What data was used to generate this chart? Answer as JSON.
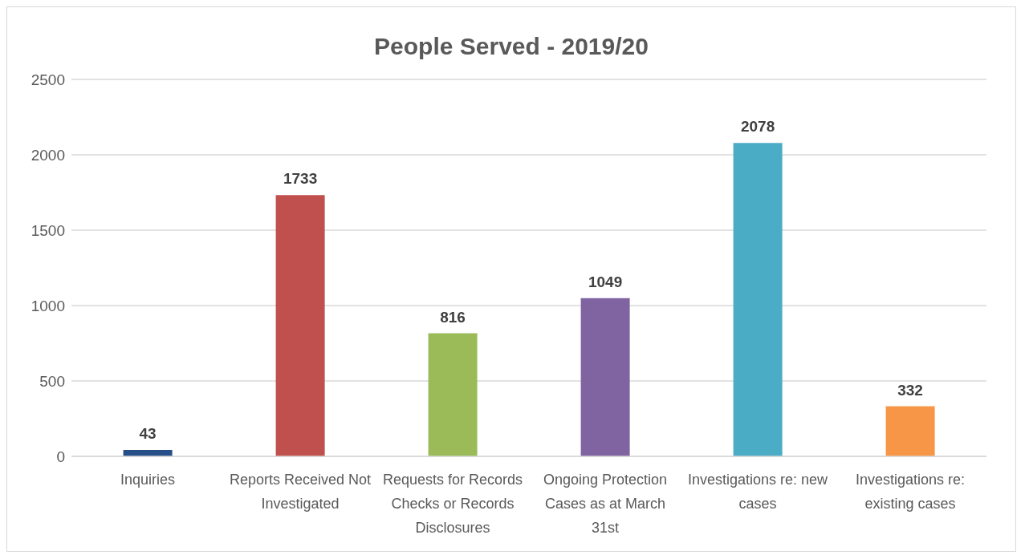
{
  "chart_data": {
    "type": "bar",
    "title": "People Served - 2019/20",
    "categories": [
      "Inquiries",
      "Reports Received Not Investigated",
      "Requests for Records Checks or Records Disclosures",
      "Ongoing Protection Cases as at March 31st",
      "Investigations re: new cases",
      "Investigations re: existing cases"
    ],
    "values": [
      43,
      1733,
      816,
      1049,
      2078,
      332
    ],
    "colors": [
      "#264f8a",
      "#c0504d",
      "#9bbb59",
      "#8064a2",
      "#4bacc6",
      "#f79646"
    ],
    "ylim": [
      0,
      2500
    ],
    "yticks": [
      0,
      500,
      1000,
      1500,
      2000,
      2500
    ],
    "grid": "y",
    "data_labels": true
  }
}
